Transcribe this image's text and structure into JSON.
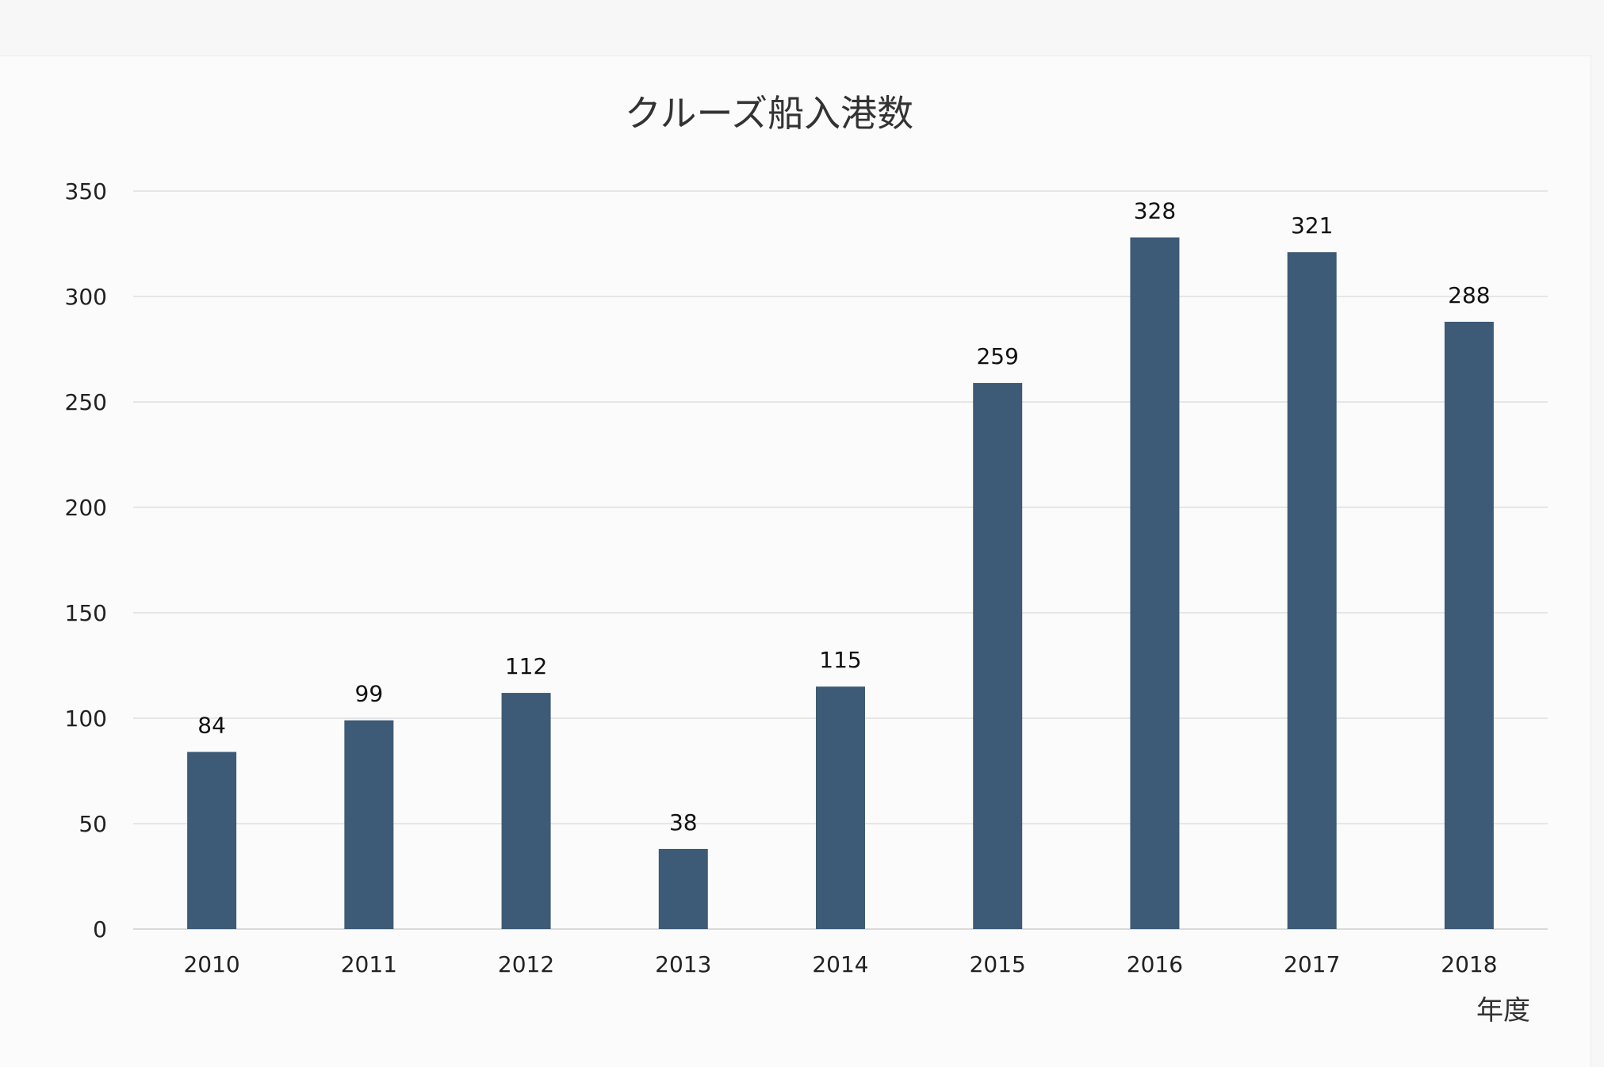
{
  "chart_data": {
    "type": "bar",
    "title": "クルーズ船入港数",
    "xlabel": "年度",
    "ylabel": "",
    "categories": [
      "2010",
      "2011",
      "2012",
      "2013",
      "2014",
      "2015",
      "2016",
      "2017",
      "2018"
    ],
    "values": [
      84,
      99,
      112,
      38,
      115,
      259,
      328,
      321,
      288
    ],
    "ylim": [
      0,
      350
    ],
    "yticks": [
      0,
      50,
      100,
      150,
      200,
      250,
      300,
      350
    ],
    "grid": true,
    "legend": "none",
    "bar_color": "#3d5a76"
  }
}
